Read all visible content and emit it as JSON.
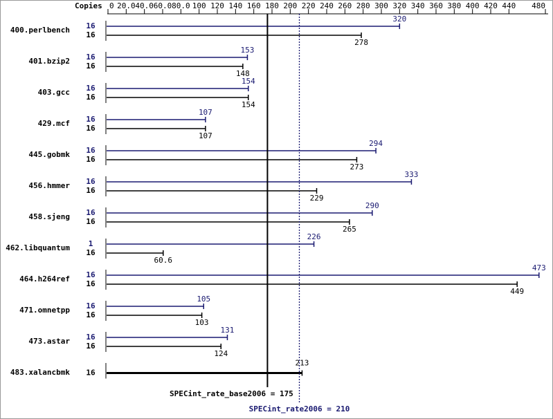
{
  "chart_data": {
    "type": "bar",
    "orientation": "horizontal",
    "axis_label": "Copies",
    "xlim": [
      0,
      480
    ],
    "xticks": [
      0,
      {
        "value": 20,
        "label": "20.0"
      },
      {
        "value": 40,
        "label": "40.0"
      },
      {
        "value": 60,
        "label": "60.0"
      },
      {
        "value": 80,
        "label": "80.0"
      },
      100,
      120,
      140,
      160,
      180,
      200,
      220,
      240,
      260,
      280,
      300,
      320,
      340,
      360,
      380,
      400,
      420,
      440,
      480
    ],
    "categories": [
      "400.perlbench",
      "401.bzip2",
      "403.gcc",
      "429.mcf",
      "445.gobmk",
      "456.hmmer",
      "458.sjeng",
      "462.libquantum",
      "464.h264ref",
      "471.omnetpp",
      "473.astar",
      "483.xalancbmk"
    ],
    "series": [
      {
        "color": "#191970",
        "copies": [
          16,
          16,
          16,
          16,
          16,
          16,
          16,
          1,
          16,
          16,
          16,
          null
        ],
        "values": [
          320,
          153,
          154,
          107,
          294,
          333,
          290,
          226,
          473,
          105,
          131,
          null
        ]
      },
      {
        "color": "#000000",
        "copies": [
          16,
          16,
          16,
          16,
          16,
          16,
          16,
          16,
          16,
          16,
          16,
          16
        ],
        "values": [
          278,
          148,
          154,
          107,
          273,
          229,
          265,
          60.6,
          449,
          103,
          124,
          213
        ]
      }
    ],
    "reference_lines": [
      {
        "label": "SPECint_rate_base2006 = 175",
        "value": 175,
        "color": "#000000",
        "style": "solid"
      },
      {
        "label": "SPECint_rate2006 = 210",
        "value": 210,
        "color": "#191970",
        "style": "dotted"
      }
    ]
  }
}
